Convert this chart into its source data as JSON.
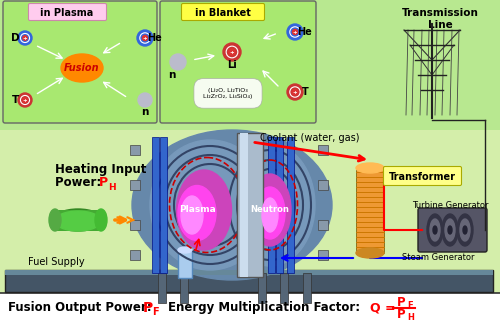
{
  "bg_color": "#ddf0c0",
  "green_top": "#90dd60",
  "white_bottom": "#ffffff",
  "plasma_box_bg": "#ffccee",
  "blanket_box_bg": "#ffff88",
  "green_box": "#88cc44",
  "fusion_color": "#ff8800",
  "fusion_text_color": "#cc0000",
  "plasma_pink": "#ff44cc",
  "plasma_light": "#ff88ff",
  "red_color": "#ff0000",
  "orange_color": "#ff8800",
  "blue_color": "#0000ff",
  "dark_color": "#111111",
  "grey_color": "#888888",
  "coil_blue": "#2255bb",
  "coil_dark": "#334466",
  "steel_color": "#8899aa",
  "heater_green": "#44aa33",
  "transformer_gold": "#dd9933",
  "platform_dark": "#445566",
  "plasma_box_label": "in Plasma",
  "blanket_box_label": "in Blanket",
  "transmission_label": "Transmission\nLine",
  "coolant_label": "Coolant (water, gas)",
  "transformer_label": "Transformer",
  "turbine_label": "Turbine Generator",
  "steam_label": "Steam Generator",
  "fuel_label": "Fuel Supply",
  "plasma_text": "Plasma",
  "neutron_text": "Neutron",
  "fusion_text": "Fusion",
  "heating_line1": "Heating Input",
  "heating_line2": "Power: ",
  "fusion_out_text": "Fusion Output Power: ",
  "energy_text": "Energy Multiplication Factor:",
  "lithium_compounds": "(Li₂O, Li₂TiO₃\nLi₂ZrO₂, Li₄SiO₄)"
}
